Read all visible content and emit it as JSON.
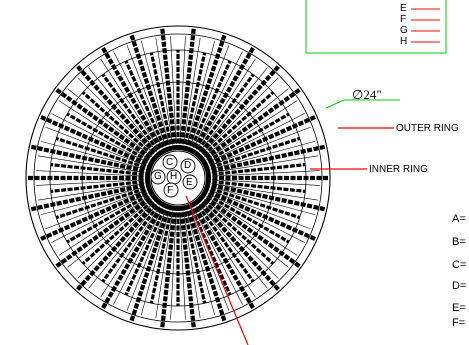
{
  "top_legend": {
    "items": [
      {
        "letter": "E",
        "color": "#ff0000"
      },
      {
        "letter": "F",
        "color": "#ff0000"
      },
      {
        "letter": "G",
        "color": "#ff0000"
      },
      {
        "letter": "H",
        "color": "#ff0000"
      }
    ]
  },
  "diameter_label": "∅24\"",
  "outer_ring_label": "OUTER RING",
  "inner_ring_label": "INNER RING",
  "center_letters": [
    "C",
    "D",
    "G",
    "H",
    "E",
    "F"
  ],
  "right_legend": [
    "A=",
    "B=",
    "C=",
    "D=",
    "E=",
    "F="
  ],
  "colors": {
    "leader_red": "#ff0000",
    "leader_green": "#00cc00",
    "ink": "#000000"
  }
}
